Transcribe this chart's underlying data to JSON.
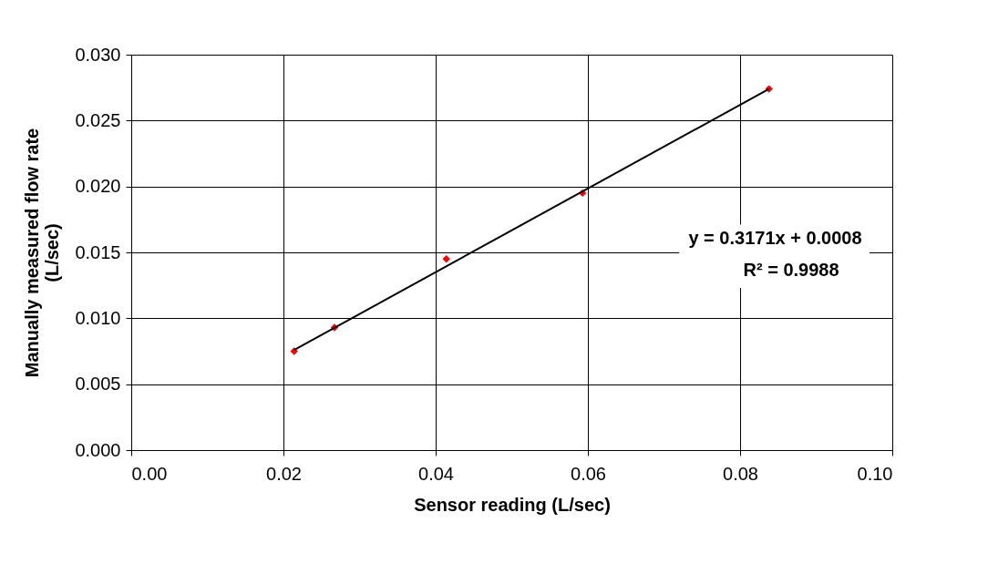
{
  "chart_data": {
    "type": "scatter",
    "xlabel": "Sensor reading (L/sec)",
    "ylabel": "Manually measured flow rate\n(L/sec)",
    "series": [
      {
        "color": "#ff0000",
        "marker": "diamond",
        "x": [
          0.0214,
          0.0267,
          0.0414,
          0.0593,
          0.0838
        ],
        "values": [
          0.0075,
          0.0093,
          0.0145,
          0.0195,
          0.0274
        ]
      },
      {
        "type": "line",
        "color": "#000000",
        "line_style": "solid",
        "x": [
          0.0214,
          0.0838
        ],
        "values": [
          0.0076,
          0.0274
        ]
      }
    ],
    "annotations": [
      "y = 0.3171x + 0.0008",
      "R² = 0.9988"
    ],
    "xlim": [
      0,
      0.1
    ],
    "ylim": [
      0,
      0.03
    ],
    "xticks": [
      {
        "value": 0,
        "label": "0.00"
      },
      {
        "value": 0.02,
        "label": "0.02"
      },
      {
        "value": 0.04,
        "label": "0.04"
      },
      {
        "value": 0.06,
        "label": "0.06"
      },
      {
        "value": 0.08,
        "label": "0.08"
      },
      {
        "value": 0.1,
        "label": "0.10"
      }
    ],
    "yticks": [
      {
        "value": 0,
        "label": "0.000"
      },
      {
        "value": 0.005,
        "label": "0.005"
      },
      {
        "value": 0.01,
        "label": "0.010"
      },
      {
        "value": 0.015,
        "label": "0.015"
      },
      {
        "value": 0.02,
        "label": "0.020"
      },
      {
        "value": 0.025,
        "label": "0.025"
      },
      {
        "value": 0.03,
        "label": "0.030"
      }
    ],
    "grid": true
  }
}
